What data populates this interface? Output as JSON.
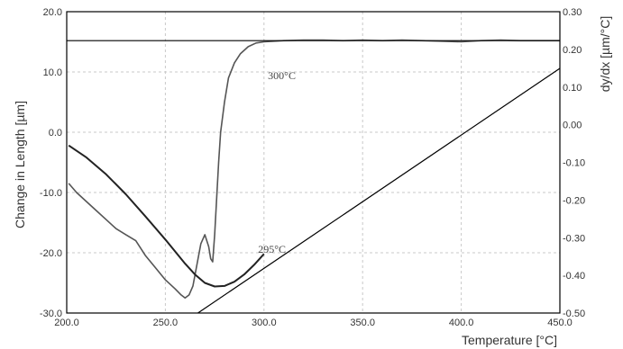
{
  "chart_data": {
    "type": "line",
    "title": "",
    "xlabel": "Temperature  [°C]",
    "ylabel": "Change in Length  [µm]",
    "y2label": "dy/dx  [µm/°C]",
    "xlim": [
      200,
      450
    ],
    "ylim": [
      -30,
      20
    ],
    "y2lim": [
      -0.5,
      0.3
    ],
    "x_ticks": [
      "200.0",
      "250.0",
      "300.0",
      "350.0",
      "400.0",
      "450.0"
    ],
    "y_ticks": [
      "20.0",
      "10.0",
      "0.0",
      "-10.0",
      "-20.0",
      "-30.0"
    ],
    "y2_ticks": [
      "0.30",
      "0.20",
      "0.10",
      "0.00",
      "-0.10",
      "-0.20",
      "-0.30",
      "-0.40",
      "-0.50"
    ],
    "grid": true,
    "annotations": [
      {
        "text": "300°C",
        "x": 302,
        "y": 8.8
      },
      {
        "text": "295°C",
        "x": 297,
        "y": -20.0
      }
    ],
    "series": [
      {
        "axis": "left",
        "color": "#555555",
        "x": [
          201,
          205,
          210,
          215,
          220,
          225,
          230,
          235,
          240,
          245,
          250,
          255,
          258,
          260,
          262,
          264,
          266,
          268,
          270,
          272,
          273,
          274,
          275,
          276,
          277,
          278,
          280,
          282,
          285,
          288,
          292,
          296,
          300,
          310,
          320,
          330,
          340,
          350,
          360,
          370,
          380,
          390,
          400,
          410,
          420,
          430,
          440,
          450
        ],
        "y": [
          -8.5,
          -10.0,
          -11.5,
          -13.0,
          -14.5,
          -16.0,
          -17.0,
          -18.0,
          -20.5,
          -22.5,
          -24.5,
          -26.0,
          -27.0,
          -27.5,
          -27.0,
          -25.5,
          -22.0,
          -18.5,
          -17.0,
          -19.0,
          -21.0,
          -21.5,
          -17.0,
          -11.0,
          -5.0,
          0.0,
          5.0,
          9.0,
          11.5,
          13.0,
          14.2,
          14.8,
          15.0,
          15.2,
          15.3,
          15.3,
          15.2,
          15.3,
          15.2,
          15.3,
          15.2,
          15.1,
          15.0,
          15.2,
          15.3,
          15.2,
          15.2,
          15.2
        ]
      },
      {
        "axis": "left",
        "color": "#222222",
        "x": [
          201,
          210,
          220,
          230,
          240,
          250,
          260,
          265,
          270,
          275,
          280,
          285,
          290,
          295,
          300
        ],
        "y": [
          -2.2,
          -4.2,
          -7.0,
          -10.3,
          -14.0,
          -17.8,
          -21.8,
          -23.6,
          -25.0,
          -25.6,
          -25.5,
          -24.8,
          -23.6,
          -22.0,
          -20.2
        ]
      },
      {
        "axis": "left",
        "color": "#000000",
        "x": [
          266.5,
          450
        ],
        "y": [
          -30.0,
          10.6
        ]
      },
      {
        "axis": "left",
        "color": "#000000",
        "x": [
          200,
          450
        ],
        "y": [
          15.2,
          15.2
        ]
      }
    ]
  }
}
